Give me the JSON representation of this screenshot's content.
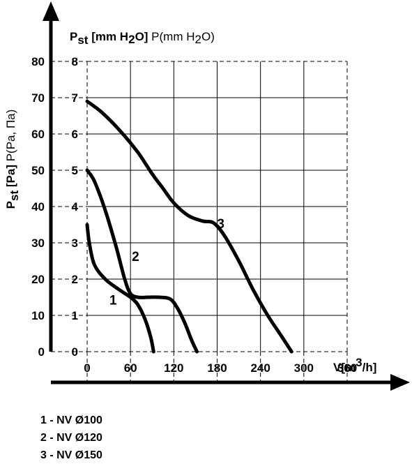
{
  "chart_data": {
    "type": "line",
    "x_label_prefix": "V[m",
    "x_label_sup": "3",
    "x_label_suffix": "/h]",
    "y_left_label_main": "P",
    "y_left_label_sub": "st",
    "y_left_label_rest": " [Pa]",
    "y_left_label_light": " P(Pa, Па)",
    "y_right_label_main": "P",
    "y_right_label_sub": "st",
    "y_right_label_rest": " [mm H",
    "y_right_label_sub2": "2",
    "y_right_label_rest2": "O]",
    "y_right_label_light": " P(mm H",
    "y_right_label_light_sub": "2",
    "y_right_label_light_end": "O)",
    "xlim": [
      0,
      360
    ],
    "ylim_pa": [
      0,
      80
    ],
    "ylim_mm": [
      0,
      8
    ],
    "x_ticks": [
      "0",
      "60",
      "120",
      "180",
      "240",
      "300",
      "360"
    ],
    "x_tick_values": [
      0,
      60,
      120,
      180,
      240,
      300,
      360
    ],
    "y_ticks_pa": [
      "0",
      "10",
      "20",
      "30",
      "40",
      "50",
      "60",
      "70",
      "80"
    ],
    "y_ticks_mm": [
      "0",
      "1",
      "2",
      "3",
      "4",
      "5",
      "6",
      "7",
      "8"
    ],
    "y_tick_values": [
      0,
      10,
      20,
      30,
      40,
      50,
      60,
      70,
      80
    ],
    "grid": true,
    "series": [
      {
        "name": "1",
        "x": [
          0,
          3,
          10,
          25,
          45,
          60,
          70,
          80,
          88,
          92
        ],
        "y": [
          35,
          30,
          24,
          20,
          17,
          15,
          13,
          9,
          4,
          0
        ]
      },
      {
        "name": "2",
        "x": [
          0,
          10,
          25,
          40,
          52,
          60,
          70,
          85,
          100,
          115,
          125,
          135,
          145,
          152
        ],
        "y": [
          50,
          47,
          39,
          29,
          20,
          16,
          15,
          15,
          15,
          14.5,
          12,
          8,
          3,
          0
        ]
      },
      {
        "name": "3",
        "x": [
          0,
          20,
          45,
          70,
          90,
          105,
          120,
          140,
          160,
          175,
          190,
          210,
          230,
          250,
          270,
          283
        ],
        "y": [
          69,
          66,
          61,
          55,
          49,
          45,
          41,
          37.5,
          36,
          35.5,
          32,
          25,
          17,
          10,
          4,
          0
        ]
      }
    ],
    "curve_labels": [
      {
        "text": "1",
        "x": 36,
        "y": 13
      },
      {
        "text": "2",
        "x": 67,
        "y": 25
      },
      {
        "text": "3",
        "x": 185,
        "y": 34
      }
    ]
  },
  "legend": {
    "items": [
      "1 - NV Ø100",
      "2 - NV Ø120",
      "3 - NV Ø150"
    ]
  }
}
